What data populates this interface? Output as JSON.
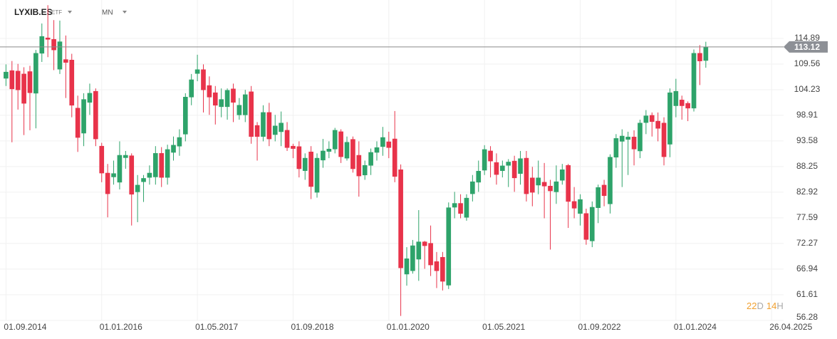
{
  "header": {
    "symbol": "LYXIB.ES",
    "instrument": "ETF",
    "timeframe": "MN",
    "countdown": [
      {
        "text": "22",
        "color": "#f0a030"
      },
      {
        "text": "D",
        "color": "#aaaaaa"
      },
      {
        "text": "14",
        "color": "#f0a030"
      },
      {
        "text": "H",
        "color": "#aaaaaa"
      }
    ]
  },
  "chart_data": {
    "type": "candlestick",
    "up_color": "#2ea36a",
    "down_color": "#e8334a",
    "open": [
      106.6,
      108.2,
      108.1,
      107.5,
      108,
      103.5,
      111.8,
      115,
      114.7,
      108.5,
      110.5,
      110.4,
      100.4,
      95.2,
      101.6,
      103.9,
      92.5,
      86.9,
      86.1,
      85,
      90.1,
      90.5,
      83,
      85.1,
      86,
      86.1,
      91,
      86,
      91.2,
      92.5,
      95,
      102.7,
      107.6,
      108.4,
      105.1,
      103.6,
      100.7,
      100.7,
      104.4,
      99,
      99,
      103.8,
      96.8,
      94.5,
      99.5,
      94.9,
      95.5,
      95.8,
      92.5,
      92.4,
      87.4,
      91.3,
      82.9,
      89.6,
      91.4,
      91.9,
      95.5,
      90,
      93.9,
      90.6,
      86.5,
      88.5,
      91.2,
      92.4,
      93.4,
      94,
      87.6,
      65.9,
      66.6,
      69,
      72.6,
      72.3,
      68.5,
      69.4,
      63.6,
      79.8,
      80.6,
      77.7,
      82.6,
      85,
      87.5,
      91.5,
      89.1,
      87.4,
      88.5,
      89.4,
      86.8,
      90,
      85.9,
      84.4,
      85,
      84.2,
      83,
      85.4,
      88.5,
      81,
      78.5,
      78.5,
      72.8,
      79.7,
      84.4,
      80.5,
      90.2,
      93.5,
      93.9,
      94.4,
      91.5,
      97.4,
      98.9,
      97.7,
      97.3,
      92.9,
      100.9,
      102.1,
      101.4,
      100.4,
      111.8,
      110.3
    ],
    "high": [
      109.5,
      110.2,
      109.6,
      108.9,
      109.2,
      112.5,
      118,
      121.8,
      118.7,
      118.6,
      115.5,
      111.7,
      103,
      103.5,
      105.5,
      104.5,
      93.2,
      88.8,
      89.5,
      93.5,
      91.5,
      91,
      86.5,
      86.5,
      88.5,
      92.5,
      92.3,
      92.8,
      94.5,
      96,
      103.5,
      107.5,
      111.5,
      109.5,
      107,
      105,
      104.5,
      104.5,
      105.5,
      102.5,
      104.2,
      105,
      97.5,
      101,
      101.5,
      99,
      99.7,
      97.5,
      93,
      93.5,
      91,
      92.5,
      91,
      94,
      93.5,
      96.3,
      96,
      94.5,
      94.5,
      93.5,
      89.5,
      92,
      93.5,
      96.5,
      95.5,
      99.8,
      88.7,
      71.5,
      73,
      79.2,
      72.8,
      76,
      70.5,
      70.5,
      80.8,
      83,
      82.5,
      82.5,
      86.5,
      89.5,
      92.7,
      92.5,
      91,
      89.5,
      89.8,
      90.5,
      91.5,
      91.5,
      88.2,
      89.5,
      89,
      85.5,
      88.5,
      88.8,
      88.8,
      84,
      82.5,
      79.5,
      81,
      84.5,
      85.5,
      90.8,
      95,
      96,
      95.5,
      95.8,
      98,
      100,
      99.5,
      99.5,
      98.5,
      104.5,
      106.5,
      103,
      101.8,
      112.6,
      113.5,
      114.2
    ],
    "low": [
      105,
      93.3,
      100.1,
      94.8,
      95.8,
      96.2,
      110,
      111,
      108.3,
      107.5,
      102.5,
      98.5,
      91.3,
      92.5,
      99,
      92.5,
      85,
      77.7,
      84.5,
      83.5,
      87.8,
      76,
      76.7,
      80.9,
      84.5,
      84.5,
      84,
      84.5,
      89.5,
      90.5,
      93.5,
      101,
      106,
      99.5,
      99,
      97,
      98.5,
      98,
      97.5,
      98,
      97.5,
      93,
      89.5,
      93.5,
      92.5,
      93.5,
      92.5,
      91.5,
      90,
      86,
      85.5,
      81.5,
      81.8,
      88,
      90,
      91,
      89,
      89.5,
      87,
      82,
      85.5,
      86.5,
      89.5,
      90.5,
      90,
      85,
      57.2,
      63.5,
      66,
      64.5,
      67,
      65.5,
      63,
      62.5,
      62.8,
      77.5,
      77.5,
      77,
      81,
      83,
      86.5,
      86,
      84.5,
      86,
      84,
      83,
      84.5,
      81,
      80,
      82.5,
      77.5,
      71,
      80.5,
      84.5,
      75.5,
      77.5,
      76,
      72,
      71.5,
      76.5,
      80,
      78.5,
      88,
      84,
      86.5,
      88.5,
      90,
      95,
      94.5,
      93.5,
      88.5,
      90.2,
      98.5,
      98,
      97.7,
      99.7,
      105.2,
      108.8
    ],
    "close": [
      107.9,
      104.4,
      104.2,
      101.4,
      103.6,
      111.8,
      115.3,
      114.7,
      112.5,
      114.2,
      109.9,
      101,
      94.3,
      102.2,
      103.5,
      94,
      86.9,
      82.6,
      86.8,
      90.6,
      90.6,
      82.5,
      84.4,
      85.8,
      86.9,
      91,
      86,
      91.8,
      92.7,
      94.3,
      102.7,
      106.3,
      108.4,
      104.2,
      102.7,
      101,
      102.2,
      104.1,
      101.6,
      101,
      103.2,
      94.5,
      94.5,
      99.5,
      94,
      96.7,
      97.3,
      92.2,
      92,
      87.8,
      90,
      84.1,
      90,
      91.5,
      91.9,
      95.8,
      90.3,
      93.3,
      87.8,
      86.3,
      88.5,
      91.2,
      92.2,
      94.3,
      92.2,
      86.2,
      67.2,
      69.1,
      71.8,
      72.6,
      71.8,
      67.8,
      66.6,
      64.4,
      79.7,
      80.6,
      78.5,
      81.7,
      85.1,
      87.3,
      91.8,
      89.4,
      86.6,
      88.4,
      89.2,
      85.9,
      89.9,
      82.6,
      82.9,
      85.9,
      84.2,
      83.2,
      85.1,
      87.6,
      81,
      79.6,
      81.4,
      73.1,
      79.8,
      83.9,
      82.2,
      90.2,
      94.1,
      94.6,
      94.4,
      91.9,
      97.3,
      98.8,
      97.6,
      96.2,
      90.3,
      103.6,
      103.9,
      100.9,
      100.4,
      111.8,
      110.2,
      113.12
    ],
    "last_price": 113.12,
    "ylim": [
      56.26,
      122.88
    ],
    "yticks": [
      114.89,
      109.56,
      104.23,
      98.91,
      93.58,
      88.25,
      82.92,
      77.59,
      72.27,
      66.94,
      61.61,
      56.28
    ],
    "xlim": [
      -1,
      130
    ],
    "xticks": [
      {
        "value": 0,
        "label": "01.09.2014"
      },
      {
        "value": 16,
        "label": "01.01.2016"
      },
      {
        "value": 32,
        "label": "01.05.2017"
      },
      {
        "value": 48,
        "label": "01.09.2018"
      },
      {
        "value": 64,
        "label": "01.01.2020"
      },
      {
        "value": 80,
        "label": "01.05.2021"
      },
      {
        "value": 96,
        "label": "01.09.2022"
      },
      {
        "value": 112,
        "label": "01.01.2024"
      },
      {
        "value": 128,
        "label": "26.04.2025"
      }
    ],
    "grid": true
  }
}
